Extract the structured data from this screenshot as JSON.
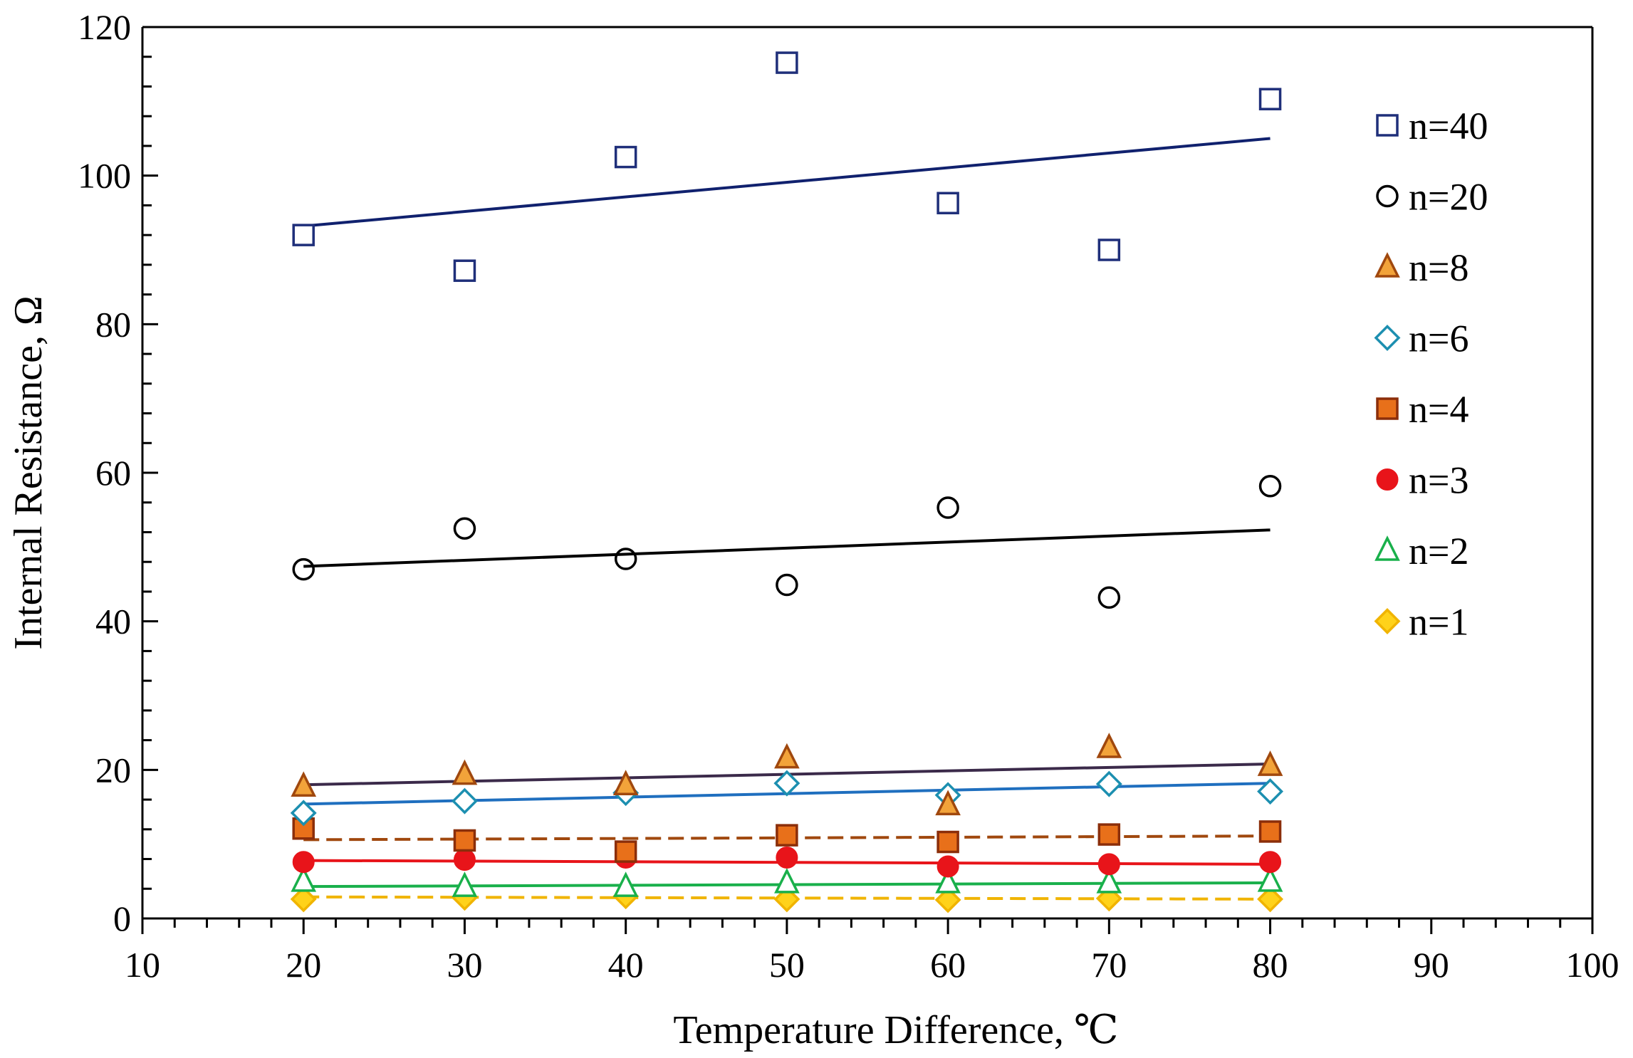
{
  "chart_data": {
    "type": "scatter",
    "title": "",
    "xlabel": "Temperature Difference, ℃",
    "ylabel": "Internal Resistance, Ω",
    "xlim": [
      10,
      100
    ],
    "ylim": [
      0,
      120
    ],
    "x_ticks": [
      10,
      20,
      30,
      40,
      50,
      60,
      70,
      80,
      90,
      100
    ],
    "y_ticks": [
      0,
      20,
      40,
      60,
      80,
      100,
      120
    ],
    "grid": false,
    "legend_position": "right",
    "x": [
      20,
      30,
      40,
      50,
      60,
      70,
      80
    ],
    "series": [
      {
        "name": "n=40",
        "marker": "square-open",
        "color": "#1F2F7A",
        "line_color": "#10216E",
        "line_style": "solid",
        "values": [
          92.0,
          87.2,
          102.5,
          115.2,
          96.3,
          90.0,
          110.3
        ],
        "trend": [
          93.2,
          105.0
        ]
      },
      {
        "name": "n=20",
        "marker": "circle-open",
        "color": "#000000",
        "line_color": "#000000",
        "line_style": "solid",
        "values": [
          47.0,
          52.5,
          48.4,
          44.9,
          55.3,
          43.2,
          58.2
        ],
        "trend": [
          47.4,
          52.3
        ]
      },
      {
        "name": "n=8",
        "marker": "triangle-filled",
        "color": "#F2A33A",
        "stroke": "#A0480E",
        "line_color": "#3B2A4A",
        "line_style": "solid",
        "values": [
          17.8,
          19.4,
          18.0,
          21.6,
          15.3,
          23.0,
          20.6
        ],
        "trend": [
          18.0,
          20.8
        ]
      },
      {
        "name": "n=6",
        "marker": "diamond-open",
        "color": "#1C8FB0",
        "line_color": "#1F6FBF",
        "line_style": "solid",
        "values": [
          14.2,
          15.8,
          16.9,
          18.2,
          16.6,
          18.1,
          17.1
        ],
        "trend": [
          15.4,
          18.2
        ]
      },
      {
        "name": "n=4",
        "marker": "square-filled",
        "color": "#E8701A",
        "stroke": "#8B2E0A",
        "line_color": "#A0480E",
        "line_style": "dashed",
        "values": [
          12.1,
          10.5,
          9.0,
          11.2,
          10.3,
          11.3,
          11.7
        ],
        "trend": [
          10.6,
          11.1
        ]
      },
      {
        "name": "n=3",
        "marker": "circle-filled",
        "color": "#E8141A",
        "line_color": "#E8141A",
        "line_style": "solid",
        "values": [
          7.6,
          7.9,
          8.2,
          8.2,
          7.0,
          7.3,
          7.6
        ],
        "trend": [
          7.8,
          7.3
        ]
      },
      {
        "name": "n=2",
        "marker": "triangle-open",
        "color": "#19B04B",
        "line_color": "#19B04B",
        "line_style": "solid",
        "values": [
          5.0,
          4.3,
          4.3,
          4.8,
          4.8,
          4.8,
          5.0
        ],
        "trend": [
          4.3,
          4.8
        ]
      },
      {
        "name": "n=1",
        "marker": "diamond-filled",
        "color": "#FFD21A",
        "stroke": "#F0B400",
        "line_color": "#F0B400",
        "line_style": "dashed",
        "values": [
          2.6,
          2.8,
          3.0,
          2.6,
          2.5,
          2.7,
          2.6
        ],
        "trend": [
          2.9,
          2.6
        ]
      }
    ]
  }
}
